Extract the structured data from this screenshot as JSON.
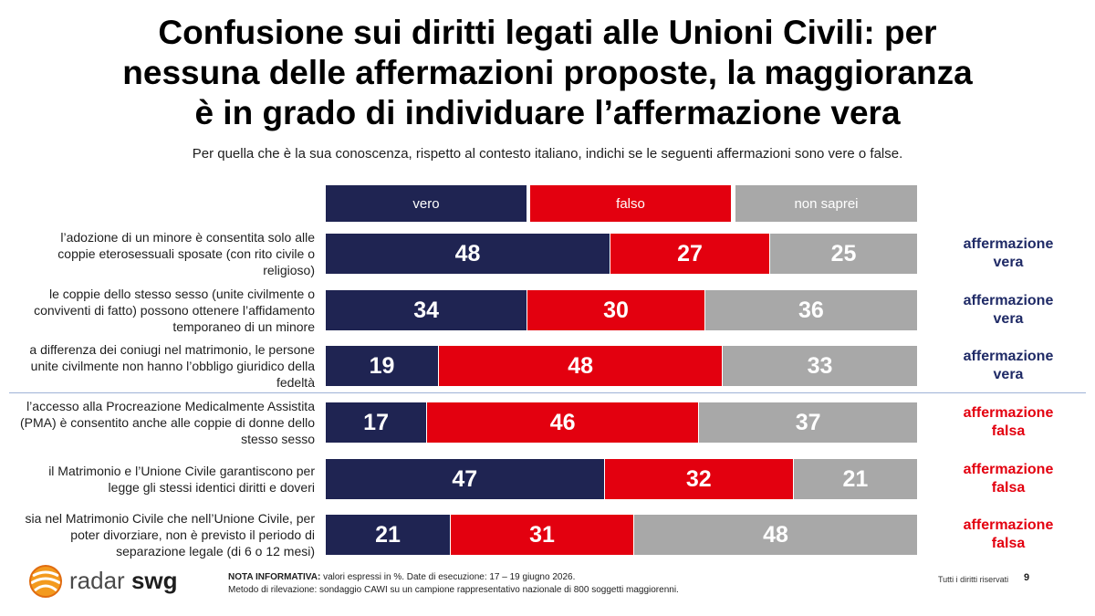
{
  "header": {
    "title_line1": "Confusione sui diritti legati alle Unioni Civili: per",
    "title_line2": "nessuna delle affermazioni proposte, la maggioranza",
    "title_line3": "è in grado di individuare l’affermazione vera",
    "subtitle": "Per quella che è la sua conoscenza, rispetto al contesto italiano, indichi se le seguenti affermazioni sono vere o false."
  },
  "colors": {
    "vero": "#1f2452",
    "falso": "#e3000f",
    "non_saprei": "#a8a8a8",
    "verdict_true": "#1f2a66",
    "verdict_false": "#e3000f"
  },
  "chart_data": {
    "type": "bar",
    "orientation": "horizontal-stacked-100",
    "unit": "%",
    "legend_position": "top",
    "series": [
      {
        "name": "vero",
        "values": [
          48,
          34,
          19,
          17,
          47,
          21
        ]
      },
      {
        "name": "falso",
        "values": [
          27,
          30,
          48,
          46,
          32,
          31
        ]
      },
      {
        "name": "non saprei",
        "values": [
          25,
          36,
          33,
          37,
          21,
          48
        ]
      }
    ],
    "categories": [
      [
        "l’adozione di un minore è consentita solo alle",
        "coppie eterosessuali sposate (con rito civile o",
        "religioso)"
      ],
      [
        "le coppie dello stesso sesso (unite civilmente o",
        "conviventi di fatto) possono ottenere l’affidamento",
        "temporaneo di un minore"
      ],
      [
        "a differenza dei coniugi nel matrimonio, le persone",
        "unite civilmente non hanno l’obbligo giuridico della",
        "fedeltà"
      ],
      [
        "l’accesso alla Procreazione Medicalmente Assistita",
        "(PMA) è consentito anche alle coppie di donne dello",
        "stesso sesso"
      ],
      [
        "il Matrimonio e l’Unione Civile garantiscono per",
        "legge gli stessi identici diritti e doveri"
      ],
      [
        "sia nel Matrimonio Civile che nell’Unione Civile, per",
        "poter divorziare, non è previsto il periodo di",
        "separazione legale (di 6 o 12 mesi)"
      ]
    ],
    "verdicts": [
      {
        "line1": "affermazione",
        "line2": "vera",
        "kind": "true"
      },
      {
        "line1": "affermazione",
        "line2": "vera",
        "kind": "true"
      },
      {
        "line1": "affermazione",
        "line2": "vera",
        "kind": "true"
      },
      {
        "line1": "affermazione",
        "line2": "falsa",
        "kind": "false"
      },
      {
        "line1": "affermazione",
        "line2": "falsa",
        "kind": "false"
      },
      {
        "line1": "affermazione",
        "line2": "falsa",
        "kind": "false"
      }
    ]
  },
  "footer": {
    "logo_text_1": "radar",
    "logo_text_2": "swg",
    "note_label": "NOTA INFORMATIVA:",
    "note_line1": "valori espressi in %. Date di esecuzione: 17 – 19 giugno 2026.",
    "note_line2": "Metodo di rilevazione: sondaggio CAWI su un campione rappresentativo nazionale di 800 soggetti maggiorenni.",
    "rights": "Tutti i diritti riservati",
    "page_number": "9"
  }
}
